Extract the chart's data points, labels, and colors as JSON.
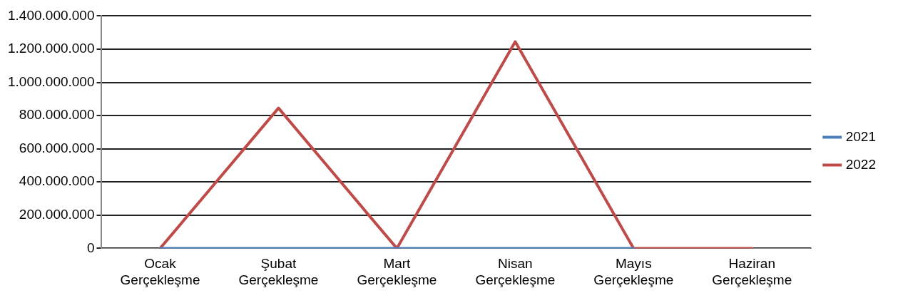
{
  "chart_data": {
    "type": "line",
    "categories": [
      "Ocak Gerçekleşme",
      "Şubat Gerçekleşme",
      "Mart Gerçekleşme",
      "Nisan Gerçekleşme",
      "Mayıs Gerçekleşme",
      "Haziran Gerçekleşme"
    ],
    "series": [
      {
        "name": "2021",
        "color": "#4a7ebb",
        "values": [
          0,
          0,
          0,
          0,
          0,
          null
        ]
      },
      {
        "name": "2022",
        "color": "#be4b48",
        "values": [
          0,
          845000000,
          0,
          1245000000,
          0,
          0
        ]
      }
    ],
    "ylim": [
      0,
      1400000000
    ],
    "yticks": [
      0,
      {
        "value": 200000000,
        "label": "200.000.000"
      },
      {
        "value": 400000000,
        "label": "400.000.000"
      },
      {
        "value": 600000000,
        "label": "600.000.000"
      },
      {
        "value": 800000000,
        "label": "800.000.000"
      },
      {
        "value": 1000000000,
        "label": "1.000.000.000"
      },
      {
        "value": 1200000000,
        "label": "1.200.000.000"
      },
      {
        "value": 1400000000,
        "label": "1.400.000.000"
      }
    ],
    "grid": "y",
    "legend": "right",
    "marker": "none",
    "line_style": "solid"
  }
}
